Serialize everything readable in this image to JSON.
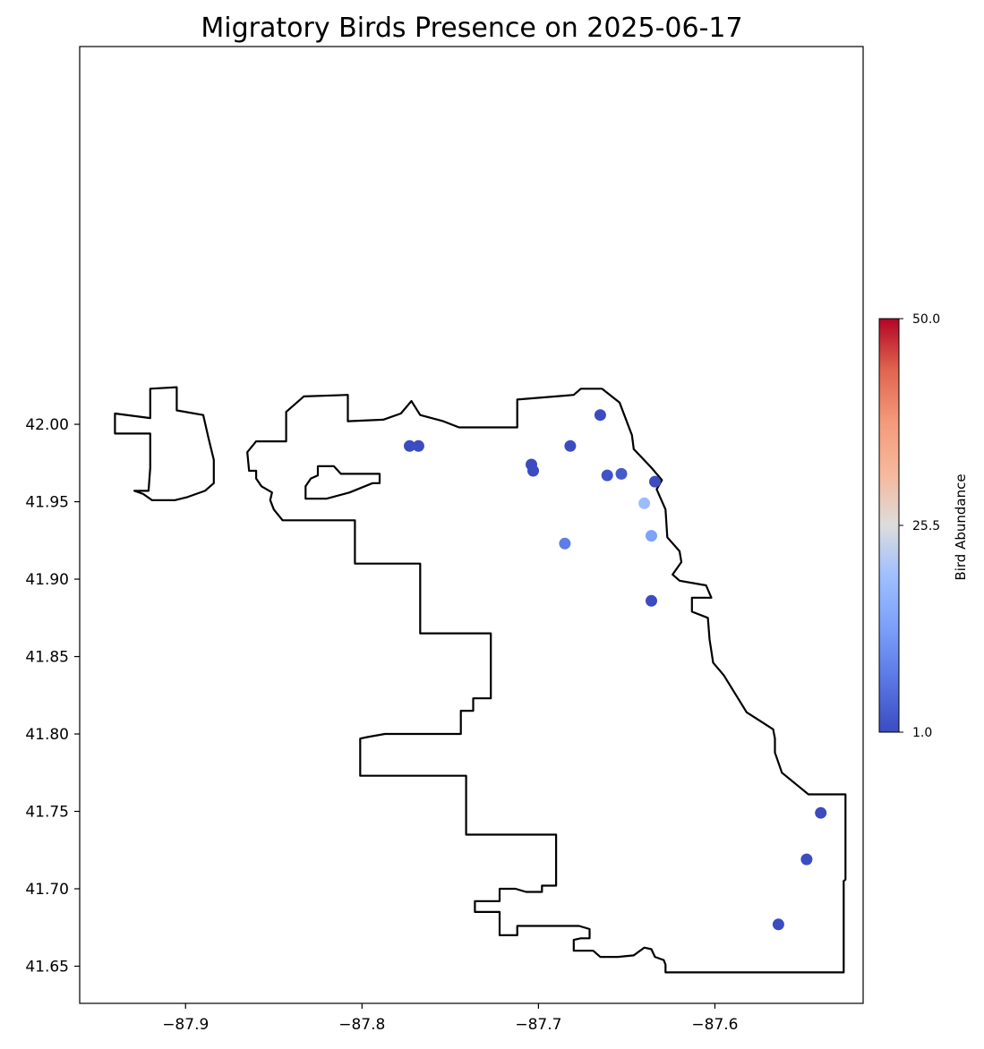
{
  "chart_data": {
    "type": "scatter",
    "title": "Migratory Birds Presence on 2025-06-17",
    "xlabel": "",
    "ylabel": "",
    "xlim": [
      -87.96,
      -87.516
    ],
    "ylim": [
      41.626,
      42.244
    ],
    "x_ticks": [
      -87.9,
      -87.8,
      -87.7,
      -87.6
    ],
    "x_tick_labels": [
      "−87.9",
      "−87.8",
      "−87.7",
      "−87.6"
    ],
    "y_ticks": [
      41.65,
      41.7,
      41.75,
      41.8,
      41.85,
      41.9,
      41.95,
      42.0
    ],
    "y_tick_labels": [
      "41.65",
      "41.70",
      "41.75",
      "41.80",
      "41.85",
      "41.90",
      "41.95",
      "42.00"
    ],
    "grid": false,
    "colormap": "coolwarm",
    "colorbar": {
      "label": "Bird Abundance",
      "min": 1.0,
      "max": 50.0,
      "ticks": [
        1.0,
        25.5,
        50.0
      ],
      "tick_labels": [
        "1.0",
        "25.5",
        "50.0"
      ],
      "placement": "right"
    },
    "boundary": {
      "stroke_color": "#000000",
      "note_region": "city outline",
      "main": [
        [
          -87.94,
          42.007
        ],
        [
          -87.92,
          42.004
        ],
        [
          -87.92,
          42.023
        ],
        [
          -87.905,
          42.024
        ],
        [
          -87.905,
          42.009
        ],
        [
          -87.89,
          42.006
        ],
        [
          -87.887,
          41.991
        ],
        [
          -87.884,
          41.977
        ],
        [
          -87.884,
          41.962
        ],
        [
          -87.889,
          41.957
        ],
        [
          -87.899,
          41.953
        ],
        [
          -87.906,
          41.951
        ],
        [
          -87.919,
          41.951
        ],
        [
          -87.924,
          41.955
        ],
        [
          -87.929,
          41.957
        ],
        [
          -87.921,
          41.957
        ],
        [
          -87.92,
          41.972
        ],
        [
          -87.92,
          41.994
        ],
        [
          -87.94,
          41.994
        ],
        [
          -87.94,
          42.007
        ]
      ],
      "city": [
        [
          -87.843,
          42.008
        ],
        [
          -87.833,
          42.018
        ],
        [
          -87.808,
          42.019
        ],
        [
          -87.808,
          42.002
        ],
        [
          -87.788,
          42.003
        ],
        [
          -87.778,
          42.007
        ],
        [
          -87.772,
          42.015
        ],
        [
          -87.767,
          42.006
        ],
        [
          -87.754,
          42.002
        ],
        [
          -87.745,
          41.998
        ],
        [
          -87.72,
          41.998
        ],
        [
          -87.712,
          41.998
        ],
        [
          -87.712,
          42.016
        ],
        [
          -87.68,
          42.019
        ],
        [
          -87.676,
          42.023
        ],
        [
          -87.664,
          42.023
        ],
        [
          -87.654,
          42.014
        ],
        [
          -87.647,
          41.993
        ],
        [
          -87.646,
          41.984
        ],
        [
          -87.636,
          41.972
        ],
        [
          -87.63,
          41.964
        ],
        [
          -87.633,
          41.958
        ],
        [
          -87.628,
          41.945
        ],
        [
          -87.627,
          41.927
        ],
        [
          -87.62,
          41.918
        ],
        [
          -87.619,
          41.911
        ],
        [
          -87.624,
          41.903
        ],
        [
          -87.62,
          41.899
        ],
        [
          -87.605,
          41.896
        ],
        [
          -87.602,
          41.888
        ],
        [
          -87.613,
          41.888
        ],
        [
          -87.613,
          41.879
        ],
        [
          -87.604,
          41.875
        ],
        [
          -87.603,
          41.861
        ],
        [
          -87.601,
          41.846
        ],
        [
          -87.595,
          41.838
        ],
        [
          -87.582,
          41.814
        ],
        [
          -87.567,
          41.803
        ],
        [
          -87.566,
          41.797
        ],
        [
          -87.566,
          41.788
        ],
        [
          -87.562,
          41.775
        ],
        [
          -87.547,
          41.761
        ],
        [
          -87.526,
          41.761
        ],
        [
          -87.526,
          41.706
        ],
        [
          -87.527,
          41.705
        ],
        [
          -87.527,
          41.686
        ],
        [
          -87.527,
          41.646
        ],
        [
          -87.549,
          41.646
        ],
        [
          -87.6,
          41.646
        ],
        [
          -87.608,
          41.646
        ],
        [
          -87.628,
          41.646
        ],
        [
          -87.628,
          41.651
        ],
        [
          -87.629,
          41.654
        ],
        [
          -87.634,
          41.656
        ],
        [
          -87.636,
          41.661
        ],
        [
          -87.64,
          41.662
        ],
        [
          -87.646,
          41.657
        ],
        [
          -87.655,
          41.656
        ],
        [
          -87.665,
          41.656
        ],
        [
          -87.669,
          41.66
        ],
        [
          -87.68,
          41.66
        ],
        [
          -87.68,
          41.667
        ],
        [
          -87.676,
          41.668
        ],
        [
          -87.671,
          41.668
        ],
        [
          -87.671,
          41.674
        ],
        [
          -87.677,
          41.676
        ],
        [
          -87.712,
          41.676
        ],
        [
          -87.712,
          41.67
        ],
        [
          -87.722,
          41.67
        ],
        [
          -87.722,
          41.685
        ],
        [
          -87.736,
          41.685
        ],
        [
          -87.736,
          41.692
        ],
        [
          -87.722,
          41.692
        ],
        [
          -87.722,
          41.7
        ],
        [
          -87.713,
          41.7
        ],
        [
          -87.713,
          41.7
        ],
        [
          -87.707,
          41.698
        ],
        [
          -87.698,
          41.698
        ],
        [
          -87.698,
          41.702
        ],
        [
          -87.69,
          41.702
        ],
        [
          -87.69,
          41.735
        ],
        [
          -87.72,
          41.735
        ],
        [
          -87.741,
          41.735
        ],
        [
          -87.741,
          41.773
        ],
        [
          -87.801,
          41.773
        ],
        [
          -87.801,
          41.797
        ],
        [
          -87.797,
          41.798
        ],
        [
          -87.787,
          41.8
        ],
        [
          -87.757,
          41.8
        ],
        [
          -87.744,
          41.8
        ],
        [
          -87.744,
          41.815
        ],
        [
          -87.737,
          41.815
        ],
        [
          -87.737,
          41.823
        ],
        [
          -87.727,
          41.823
        ],
        [
          -87.727,
          41.865
        ],
        [
          -87.749,
          41.865
        ],
        [
          -87.767,
          41.865
        ],
        [
          -87.767,
          41.91
        ],
        [
          -87.793,
          41.91
        ],
        [
          -87.804,
          41.91
        ],
        [
          -87.804,
          41.938
        ],
        [
          -87.819,
          41.938
        ],
        [
          -87.841,
          41.938
        ],
        [
          -87.845,
          41.938
        ],
        [
          -87.85,
          41.945
        ],
        [
          -87.852,
          41.951
        ],
        [
          -87.851,
          41.956
        ],
        [
          -87.857,
          41.96
        ],
        [
          -87.86,
          41.965
        ],
        [
          -87.86,
          41.97
        ],
        [
          -87.864,
          41.97
        ],
        [
          -87.865,
          41.982
        ],
        [
          -87.86,
          41.989
        ],
        [
          -87.843,
          41.989
        ],
        [
          -87.843,
          42.008
        ]
      ],
      "hole": [
        [
          -87.829,
          41.965
        ],
        [
          -87.832,
          41.96
        ],
        [
          -87.832,
          41.952
        ],
        [
          -87.82,
          41.952
        ],
        [
          -87.807,
          41.956
        ],
        [
          -87.794,
          41.962
        ],
        [
          -87.79,
          41.962
        ],
        [
          -87.79,
          41.968
        ],
        [
          -87.812,
          41.968
        ],
        [
          -87.816,
          41.973
        ],
        [
          -87.825,
          41.973
        ],
        [
          -87.825,
          41.967
        ],
        [
          -87.829,
          41.965
        ]
      ]
    },
    "points": [
      {
        "x": -87.773,
        "y": 41.986,
        "value": 1
      },
      {
        "x": -87.768,
        "y": 41.986,
        "value": 1
      },
      {
        "x": -87.665,
        "y": 42.006,
        "value": 1
      },
      {
        "x": -87.682,
        "y": 41.986,
        "value": 1
      },
      {
        "x": -87.704,
        "y": 41.974,
        "value": 1
      },
      {
        "x": -87.703,
        "y": 41.97,
        "value": 1
      },
      {
        "x": -87.661,
        "y": 41.967,
        "value": 2
      },
      {
        "x": -87.653,
        "y": 41.968,
        "value": 3
      },
      {
        "x": -87.634,
        "y": 41.963,
        "value": 1
      },
      {
        "x": -87.64,
        "y": 41.949,
        "value": 19
      },
      {
        "x": -87.636,
        "y": 41.928,
        "value": 14
      },
      {
        "x": -87.685,
        "y": 41.923,
        "value": 8
      },
      {
        "x": -87.636,
        "y": 41.886,
        "value": 1
      },
      {
        "x": -87.54,
        "y": 41.749,
        "value": 1
      },
      {
        "x": -87.548,
        "y": 41.719,
        "value": 1
      },
      {
        "x": -87.564,
        "y": 41.677,
        "value": 1
      }
    ]
  }
}
